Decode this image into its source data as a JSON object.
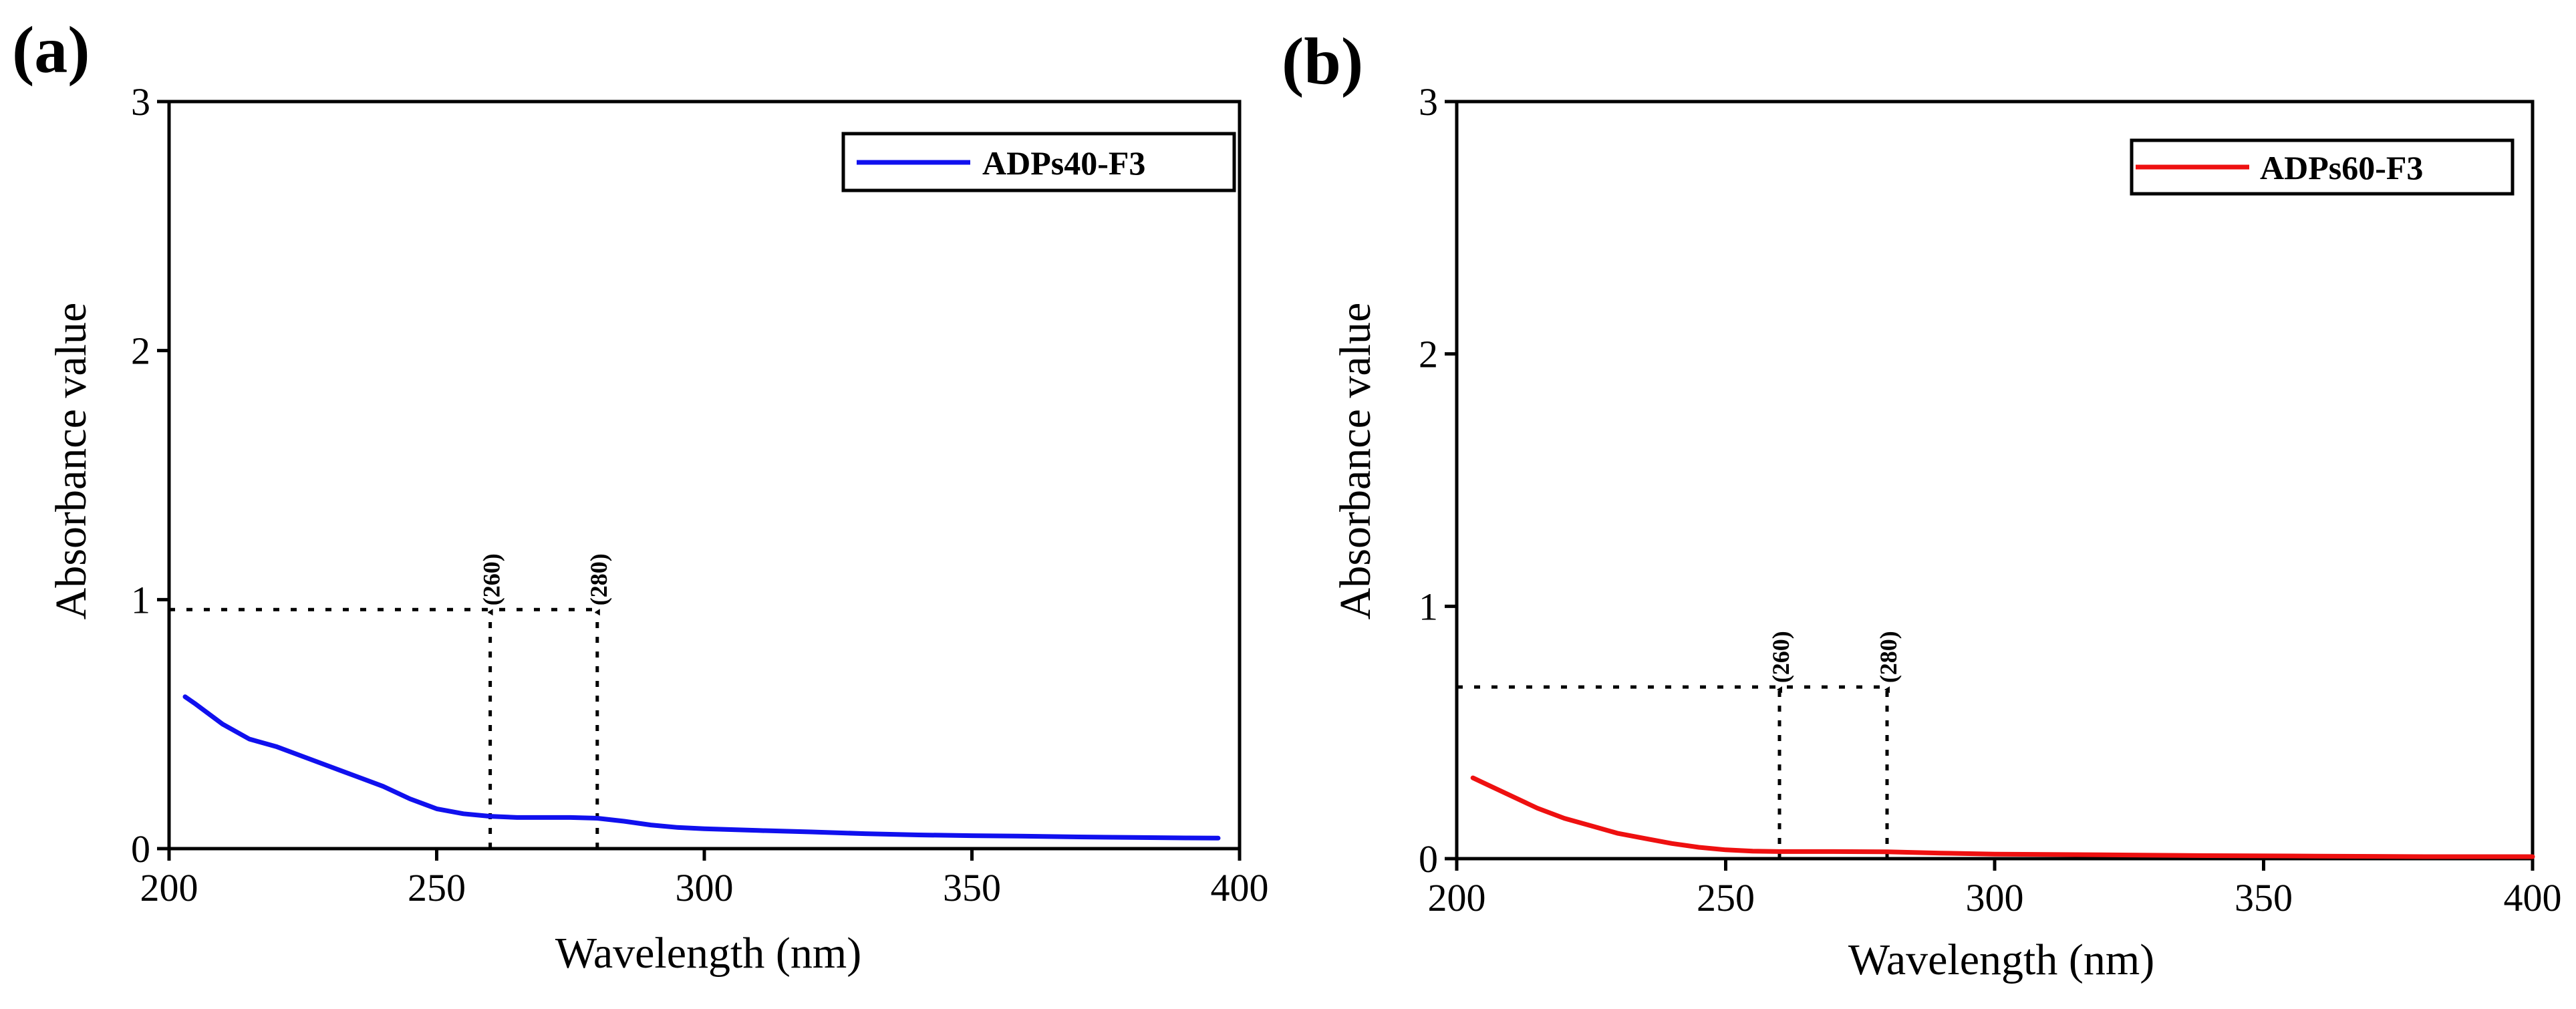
{
  "chart_data": [
    {
      "panel": "(a)",
      "type": "line",
      "xlabel": "Wavelength (nm)",
      "ylabel": "Absorbance value",
      "xlim": [
        200,
        400
      ],
      "ylim": [
        0,
        3
      ],
      "xticks": [
        200,
        250,
        300,
        350,
        400
      ],
      "yticks": [
        0,
        1,
        2,
        3
      ],
      "legend_position": "top-right",
      "grid": false,
      "series": [
        {
          "name": "ADPs40-F3",
          "color": "#1010ee",
          "x": [
            203,
            205,
            210,
            215,
            220,
            225,
            230,
            235,
            240,
            245,
            250,
            255,
            260,
            265,
            270,
            275,
            280,
            285,
            290,
            295,
            300,
            310,
            320,
            330,
            340,
            350,
            360,
            370,
            380,
            390,
            396
          ],
          "y": [
            0.61,
            0.58,
            0.5,
            0.44,
            0.41,
            0.37,
            0.33,
            0.29,
            0.25,
            0.2,
            0.16,
            0.14,
            0.13,
            0.125,
            0.125,
            0.125,
            0.122,
            0.11,
            0.095,
            0.085,
            0.08,
            0.073,
            0.067,
            0.06,
            0.055,
            0.052,
            0.05,
            0.047,
            0.045,
            0.043,
            0.042
          ]
        }
      ],
      "annotations": [
        {
          "label": "(260)",
          "x": 260,
          "y": 0.96
        },
        {
          "label": "(280)",
          "x": 280,
          "y": 0.96
        }
      ]
    },
    {
      "panel": "(b)",
      "type": "line",
      "xlabel": "Wavelength (nm)",
      "ylabel": "Absorbance value",
      "xlim": [
        200,
        400
      ],
      "ylim": [
        0,
        3
      ],
      "xticks": [
        200,
        250,
        300,
        350,
        400
      ],
      "yticks": [
        0,
        1,
        2,
        3
      ],
      "legend_position": "top-right",
      "grid": false,
      "series": [
        {
          "name": "ADPs60-F3",
          "color": "#ee1010",
          "x": [
            203,
            205,
            210,
            215,
            220,
            225,
            230,
            235,
            240,
            245,
            250,
            255,
            260,
            270,
            280,
            290,
            300,
            320,
            340,
            360,
            380,
            400
          ],
          "y": [
            0.32,
            0.3,
            0.25,
            0.2,
            0.16,
            0.13,
            0.1,
            0.08,
            0.06,
            0.045,
            0.035,
            0.03,
            0.028,
            0.028,
            0.027,
            0.022,
            0.018,
            0.015,
            0.012,
            0.01,
            0.008,
            0.008
          ]
        }
      ],
      "annotations": [
        {
          "label": "(260)",
          "x": 260,
          "y": 0.68
        },
        {
          "label": "(280)",
          "x": 280,
          "y": 0.68
        }
      ]
    }
  ]
}
